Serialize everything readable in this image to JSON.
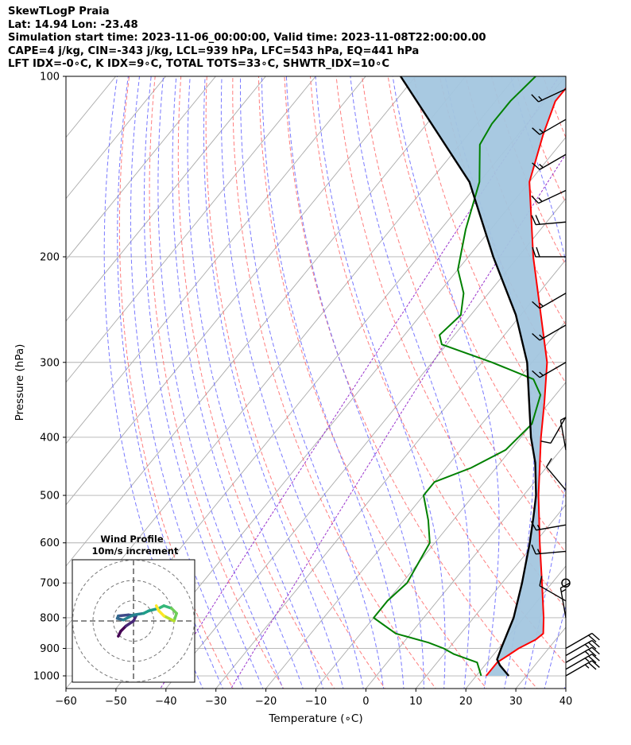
{
  "header": {
    "line1": "SkewTLogP Praia",
    "line2": "Lat: 14.94   Lon: -23.48",
    "line3": "Simulation start time: 2023-11-06_00:00:00, Valid time: 2023-11-08T22:00:00.00",
    "line4": "CAPE=4 j/kg, CIN=-343 j/kg, LCL=939 hPa, LFC=543 hPa, EQ=441 hPa",
    "line5": "LFT IDX=-0∘C, K IDX=9∘C, TOTAL TOTS=33∘C, SHWTR_IDX=10∘C"
  },
  "colors": {
    "temperature": "#ff0000",
    "dewpoint": "#008000",
    "parcel": "#000000",
    "cape_fill": "#a3c6df",
    "dry_adiabat": "#ff6666",
    "moist_adiabat": "#6a6aff",
    "mixing_ratio": "#9933cc",
    "isotherm": "#aaaaaa",
    "grid": "#b0b0b0"
  },
  "chart_data": {
    "type": "skew-t",
    "xlabel": "Temperature (∘C)",
    "ylabel": "Pressure (hPa)",
    "xlim": [
      -60,
      40
    ],
    "ylim": [
      1050,
      100
    ],
    "x_ticks": [
      "−60",
      "−50",
      "−40",
      "−30",
      "−20",
      "−10",
      "0",
      "10",
      "20",
      "30",
      "40"
    ],
    "x_tick_values": [
      -60,
      -50,
      -40,
      -30,
      -20,
      -10,
      0,
      10,
      20,
      30,
      40
    ],
    "y_ticks": [
      "1000",
      "900",
      "800",
      "700",
      "600",
      "500",
      "400",
      "300",
      "200",
      "100"
    ],
    "y_tick_values": [
      1000,
      900,
      800,
      700,
      600,
      500,
      400,
      300,
      200,
      100
    ],
    "yscale": "log",
    "grid": true,
    "temperature": [
      {
        "p": 1000,
        "t": 22
      },
      {
        "p": 950,
        "t": 22
      },
      {
        "p": 925,
        "t": 23
      },
      {
        "p": 900,
        "t": 24
      },
      {
        "p": 870,
        "t": 26
      },
      {
        "p": 850,
        "t": 26.5
      },
      {
        "p": 800,
        "t": 24
      },
      {
        "p": 700,
        "t": 18
      },
      {
        "p": 600,
        "t": 11
      },
      {
        "p": 500,
        "t": 3
      },
      {
        "p": 400,
        "t": -6
      },
      {
        "p": 350,
        "t": -11
      },
      {
        "p": 300,
        "t": -17
      },
      {
        "p": 250,
        "t": -26
      },
      {
        "p": 200,
        "t": -37
      },
      {
        "p": 150,
        "t": -50
      },
      {
        "p": 125,
        "t": -55
      },
      {
        "p": 110,
        "t": -58
      },
      {
        "p": 100,
        "t": -58
      }
    ],
    "dewpoint": [
      {
        "p": 1000,
        "t": 21
      },
      {
        "p": 950,
        "t": 18
      },
      {
        "p": 920,
        "t": 12
      },
      {
        "p": 900,
        "t": 9
      },
      {
        "p": 880,
        "t": 5
      },
      {
        "p": 850,
        "t": -3
      },
      {
        "p": 800,
        "t": -10
      },
      {
        "p": 750,
        "t": -10
      },
      {
        "p": 700,
        "t": -9
      },
      {
        "p": 600,
        "t": -11
      },
      {
        "p": 550,
        "t": -15
      },
      {
        "p": 500,
        "t": -20
      },
      {
        "p": 475,
        "t": -20
      },
      {
        "p": 450,
        "t": -15
      },
      {
        "p": 420,
        "t": -11
      },
      {
        "p": 380,
        "t": -10
      },
      {
        "p": 340,
        "t": -13
      },
      {
        "p": 320,
        "t": -17
      },
      {
        "p": 300,
        "t": -28
      },
      {
        "p": 280,
        "t": -41
      },
      {
        "p": 270,
        "t": -43
      },
      {
        "p": 250,
        "t": -42
      },
      {
        "p": 230,
        "t": -45
      },
      {
        "p": 210,
        "t": -50
      },
      {
        "p": 180,
        "t": -55
      },
      {
        "p": 150,
        "t": -60
      },
      {
        "p": 130,
        "t": -66
      },
      {
        "p": 120,
        "t": -67
      },
      {
        "p": 110,
        "t": -67
      },
      {
        "p": 100,
        "t": -66
      }
    ],
    "parcel": [
      {
        "p": 1000,
        "t": 26.5
      },
      {
        "p": 960,
        "t": 23
      },
      {
        "p": 939,
        "t": 21.5
      },
      {
        "p": 900,
        "t": 20.5
      },
      {
        "p": 800,
        "t": 18
      },
      {
        "p": 700,
        "t": 14
      },
      {
        "p": 600,
        "t": 9
      },
      {
        "p": 543,
        "t": 5.5
      },
      {
        "p": 500,
        "t": 2.5
      },
      {
        "p": 441,
        "t": -3
      },
      {
        "p": 400,
        "t": -8
      },
      {
        "p": 300,
        "t": -21
      },
      {
        "p": 250,
        "t": -31
      },
      {
        "p": 200,
        "t": -45
      },
      {
        "p": 150,
        "t": -62
      },
      {
        "p": 100,
        "t": -93
      }
    ],
    "wind_barbs": [
      {
        "p": 1000,
        "spd_kt": 25,
        "dir": 60
      },
      {
        "p": 975,
        "spd_kt": 25,
        "dir": 60
      },
      {
        "p": 950,
        "spd_kt": 25,
        "dir": 60
      },
      {
        "p": 925,
        "spd_kt": 25,
        "dir": 60
      },
      {
        "p": 900,
        "spd_kt": 20,
        "dir": 60
      },
      {
        "p": 800,
        "spd_kt": 15,
        "dir": 350
      },
      {
        "p": 750,
        "spd_kt": 10,
        "dir": 300
      },
      {
        "p": 700,
        "spd_kt": 0,
        "dir": 0
      },
      {
        "p": 620,
        "spd_kt": 15,
        "dir": 265
      },
      {
        "p": 560,
        "spd_kt": 15,
        "dir": 260
      },
      {
        "p": 490,
        "spd_kt": 10,
        "dir": 320
      },
      {
        "p": 420,
        "spd_kt": 5,
        "dir": 350
      },
      {
        "p": 370,
        "spd_kt": 10,
        "dir": 210
      },
      {
        "p": 300,
        "spd_kt": 15,
        "dir": 240
      },
      {
        "p": 260,
        "spd_kt": 15,
        "dir": 240
      },
      {
        "p": 230,
        "spd_kt": 15,
        "dir": 240
      },
      {
        "p": 200,
        "spd_kt": 20,
        "dir": 270
      },
      {
        "p": 175,
        "spd_kt": 20,
        "dir": 265
      },
      {
        "p": 155,
        "spd_kt": 15,
        "dir": 245
      },
      {
        "p": 135,
        "spd_kt": 15,
        "dir": 240
      },
      {
        "p": 118,
        "spd_kt": 15,
        "dir": 240
      },
      {
        "p": 105,
        "spd_kt": 15,
        "dir": 245
      }
    ],
    "hodograph": {
      "title": "Wind Profile",
      "subtitle": "10m/s increment",
      "ring_step_ms": 10,
      "rings": 3,
      "points_uv": [
        [
          -3,
          -3
        ],
        [
          -2.5,
          -2
        ],
        [
          -1.5,
          -1
        ],
        [
          0,
          0
        ],
        [
          0.5,
          1
        ],
        [
          -1,
          1.2
        ],
        [
          -3,
          1
        ],
        [
          -3.2,
          0.5
        ],
        [
          -2,
          0.2
        ],
        [
          0,
          1.2
        ],
        [
          2,
          1.5
        ],
        [
          3,
          2
        ],
        [
          5,
          2.5
        ],
        [
          6,
          3
        ],
        [
          7.5,
          2.5
        ],
        [
          8.5,
          1.5
        ],
        [
          8,
          0
        ],
        [
          7,
          0.5
        ],
        [
          6,
          1
        ],
        [
          5,
          2
        ],
        [
          4.5,
          3
        ]
      ]
    }
  }
}
